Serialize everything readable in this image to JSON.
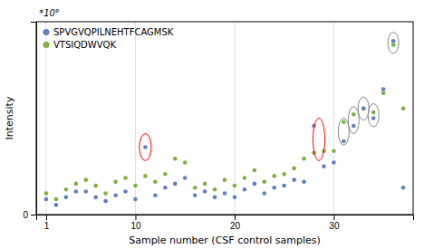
{
  "chart_data": {
    "type": "scatter",
    "xlabel": "Sample number (CSF control samples)",
    "ylabel": "Intensity",
    "xlim": [
      0.0,
      38
    ],
    "ylim": [
      0,
      1.0
    ],
    "xticks": [
      1,
      10,
      20,
      30
    ],
    "yticks": [
      0
    ],
    "grid": true,
    "legend": "upper left",
    "marker": "circle",
    "series": [
      {
        "name": "SPVGVQPILNEHTFCAGMSK",
        "color": "#6080c0",
        "x": [
          1,
          2,
          3,
          4,
          5,
          6,
          7,
          8,
          9,
          10,
          11,
          12,
          13,
          14,
          15,
          16,
          17,
          18,
          19,
          20,
          21,
          22,
          23,
          24,
          25,
          26,
          27,
          28,
          29,
          30,
          31,
          32,
          33,
          34,
          35,
          36,
          37
        ],
        "values": [
          0.08,
          0.05,
          0.09,
          0.12,
          0.12,
          0.09,
          0.07,
          0.1,
          0.12,
          0.08,
          0.35,
          0.1,
          0.14,
          0.16,
          0.19,
          0.1,
          0.12,
          0.09,
          0.11,
          0.09,
          0.13,
          0.16,
          0.11,
          0.14,
          0.15,
          0.18,
          0.17,
          0.46,
          0.25,
          0.27,
          0.38,
          0.46,
          0.55,
          0.5,
          0.65,
          0.9,
          0.14
        ]
      },
      {
        "name": "VTSIQDWVQK",
        "color": "#80b040",
        "x": [
          1,
          2,
          3,
          4,
          5,
          6,
          7,
          8,
          9,
          10,
          11,
          12,
          13,
          14,
          15,
          16,
          17,
          18,
          19,
          20,
          21,
          22,
          23,
          24,
          25,
          26,
          27,
          28,
          29,
          30,
          31,
          32,
          33,
          34,
          35,
          36,
          37
        ],
        "values": [
          0.11,
          0.08,
          0.13,
          0.16,
          0.18,
          0.15,
          0.11,
          0.17,
          0.19,
          0.15,
          0.2,
          0.17,
          0.21,
          0.29,
          0.27,
          0.14,
          0.16,
          0.13,
          0.18,
          0.15,
          0.19,
          0.23,
          0.17,
          0.2,
          0.21,
          0.24,
          0.29,
          0.32,
          0.33,
          0.33,
          0.48,
          0.52,
          0.55,
          0.53,
          0.63,
          0.88,
          0.55
        ]
      }
    ],
    "ellipses": [
      {
        "x": 11,
        "y": 0.35,
        "width": 1.2,
        "height": 0.14,
        "color": "red"
      },
      {
        "x": 28.5,
        "y": 0.39,
        "width": 1.2,
        "height": 0.22,
        "color": "red"
      },
      {
        "x": 31,
        "y": 0.43,
        "width": 1.1,
        "height": 0.14,
        "color": "#888888"
      },
      {
        "x": 32,
        "y": 0.49,
        "width": 1.1,
        "height": 0.14,
        "color": "#888888"
      },
      {
        "x": 33,
        "y": 0.55,
        "width": 1.1,
        "height": 0.12,
        "color": "#888888"
      },
      {
        "x": 34,
        "y": 0.515,
        "width": 1.1,
        "height": 0.12,
        "color": "#888888"
      },
      {
        "x": 36,
        "y": 0.89,
        "width": 1.1,
        "height": 0.11,
        "color": "#888888"
      }
    ],
    "annotations": [
      {
        "text": " *10⁹"
      }
    ]
  }
}
